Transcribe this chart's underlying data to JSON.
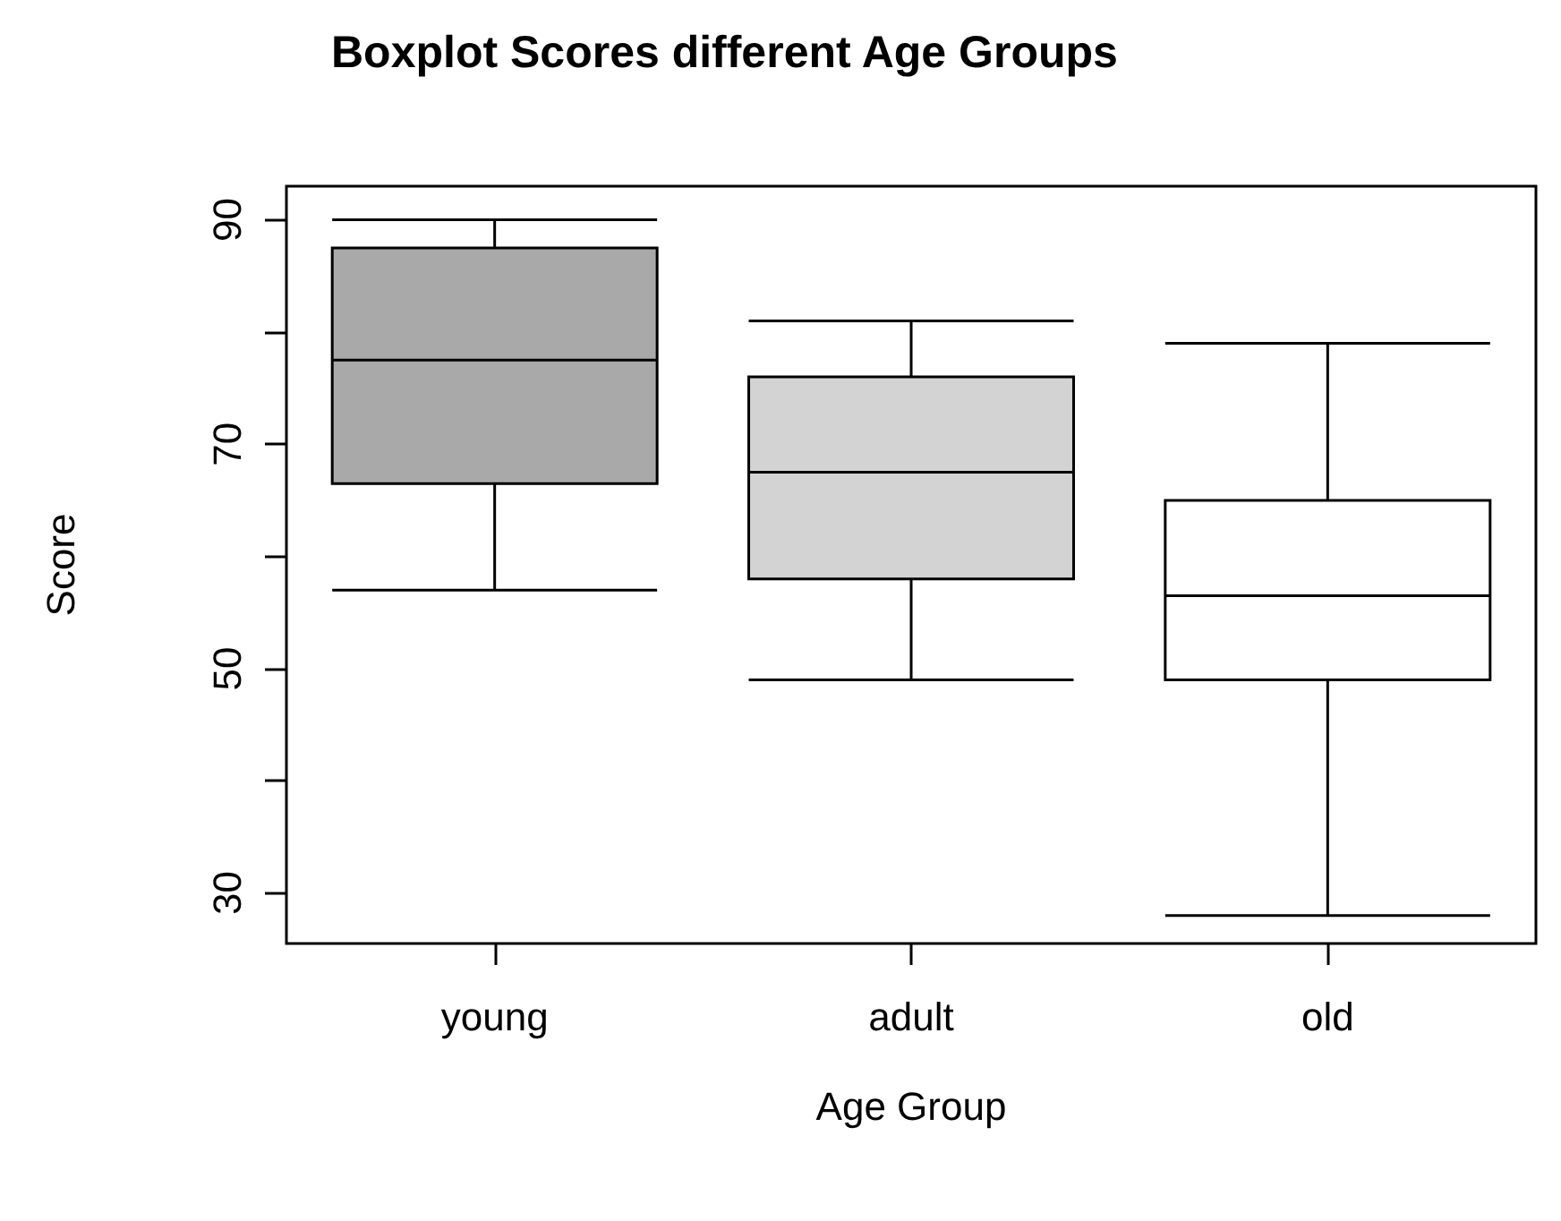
{
  "chart_data": {
    "type": "box",
    "title": "Boxplot Scores different Age Groups",
    "xlabel": "Age Group",
    "ylabel": "Score",
    "categories": [
      "young",
      "adult",
      "old"
    ],
    "boxes": [
      {
        "low": 57,
        "q1": 66.5,
        "median": 77.5,
        "q3": 87.5,
        "high": 90
      },
      {
        "low": 49,
        "q1": 58,
        "median": 67.5,
        "q3": 76,
        "high": 81
      },
      {
        "low": 28,
        "q1": 49,
        "median": 56.5,
        "q3": 65,
        "high": 79
      }
    ],
    "colors": [
      "#a9a9a9",
      "#d3d3d3",
      "#ffffff"
    ],
    "ylim": [
      25.5,
      93
    ],
    "yticks": [
      30,
      {
        "value": 40,
        "label": null
      },
      50,
      {
        "value": 60,
        "label": null
      },
      70,
      {
        "value": 80,
        "label": null
      },
      90
    ]
  }
}
